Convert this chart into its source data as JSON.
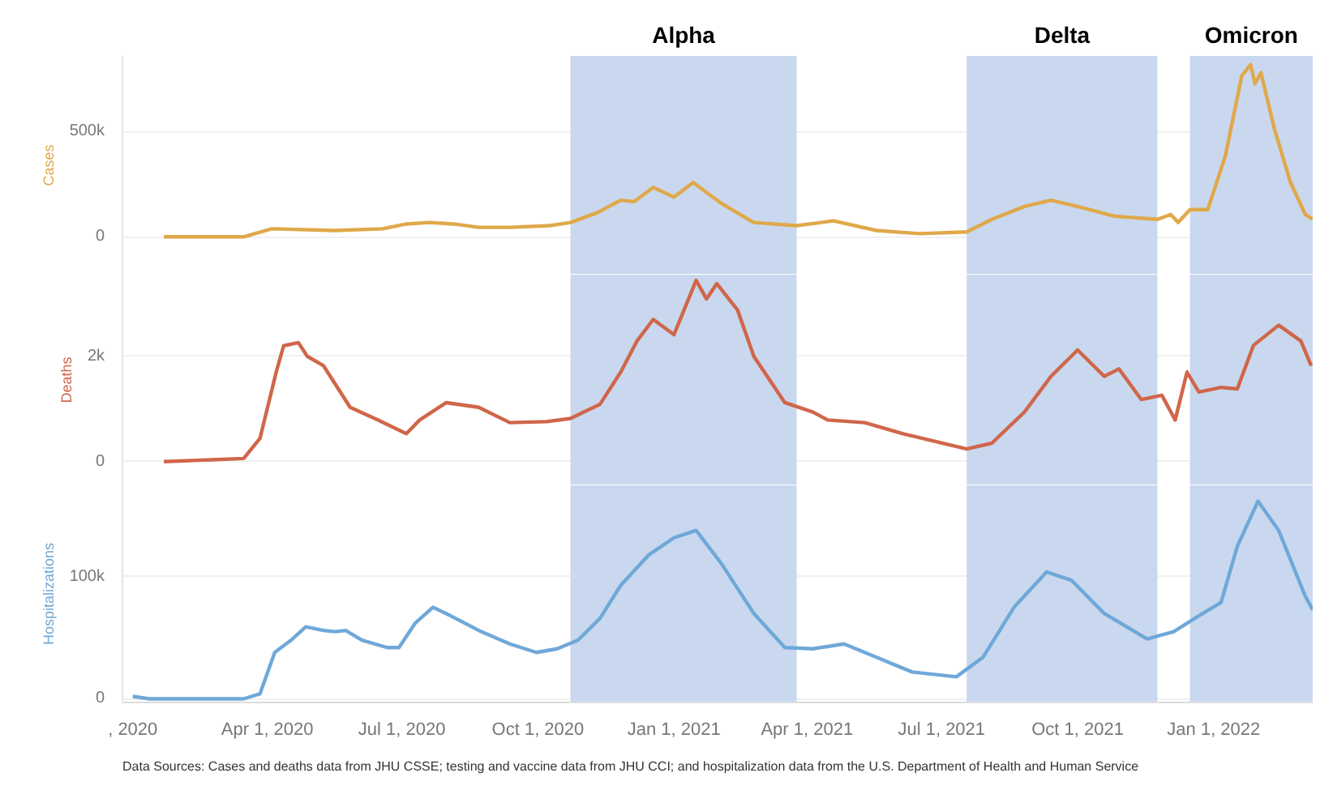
{
  "chart_data": [
    {
      "type": "line",
      "ylabel": "Cases",
      "xlim": [
        "2019-12-25",
        "2022-03-09"
      ],
      "ylim": [
        -180000,
        860000
      ],
      "yticks": [
        0,
        {
          "value": 500000,
          "label": "500k"
        }
      ],
      "grid": "y",
      "tick_labels": "y",
      "bands": [
        {
          "axis": "x",
          "from": "2020-10-23",
          "to": "2021-03-25",
          "label": "Alpha",
          "color": "#c9d8ee"
        },
        {
          "axis": "x",
          "from": "2021-07-18",
          "to": "2021-11-24",
          "label": "Delta",
          "color": "#c9d8ee"
        },
        {
          "axis": "x",
          "from": "2021-12-16",
          "to": "2022-03-09",
          "label": "Omicron",
          "color": "#c9d8ee"
        }
      ],
      "series": [
        {
          "color": "#e0a84a",
          "x": [
            "2020-01-22",
            "2020-03-16",
            "2020-04-04",
            "2020-05-17",
            "2020-06-18",
            "2020-07-04",
            "2020-07-20",
            "2020-08-05",
            "2020-08-22",
            "2020-09-12",
            "2020-10-09",
            "2020-10-23",
            "2020-11-10",
            "2020-11-26",
            "2020-12-05",
            "2020-12-18",
            "2021-01-01",
            "2021-01-14",
            "2021-02-02",
            "2021-02-24",
            "2021-03-25",
            "2021-04-19",
            "2021-05-18",
            "2021-06-16",
            "2021-07-18",
            "2021-08-04",
            "2021-08-26",
            "2021-09-13",
            "2021-10-01",
            "2021-10-26",
            "2021-11-24",
            "2021-12-03",
            "2021-12-08",
            "2021-12-16",
            "2021-12-28",
            "2022-01-09",
            "2022-01-20",
            "2022-01-26",
            "2022-01-29",
            "2022-02-02",
            "2022-02-11",
            "2022-02-22",
            "2022-03-04",
            "2022-03-09"
          ],
          "values": [
            0,
            0,
            38000,
            30000,
            38000,
            61000,
            68000,
            61000,
            45000,
            45000,
            53000,
            68000,
            114000,
            174000,
            167000,
            235000,
            189000,
            258000,
            159000,
            68000,
            53000,
            76000,
            30000,
            15000,
            23000,
            83000,
            144000,
            174000,
            144000,
            98000,
            83000,
            106000,
            68000,
            129000,
            129000,
            386000,
            765000,
            818000,
            727000,
            780000,
            515000,
            258000,
            106000,
            83000
          ]
        }
      ]
    },
    {
      "type": "line",
      "ylabel": "Deaths",
      "xlim": [
        "2019-12-25",
        "2022-03-09"
      ],
      "ylim": [
        -450,
        3550
      ],
      "yticks": [
        0,
        {
          "value": 2000,
          "label": "2k"
        }
      ],
      "grid": "y",
      "tick_labels": "y",
      "bands": [
        {
          "axis": "x",
          "from": "2020-10-23",
          "to": "2021-03-25",
          "color": "#c9d8ee"
        },
        {
          "axis": "x",
          "from": "2021-07-18",
          "to": "2021-11-24",
          "color": "#c9d8ee"
        },
        {
          "axis": "x",
          "from": "2021-12-16",
          "to": "2022-03-09",
          "color": "#c9d8ee"
        }
      ],
      "series": [
        {
          "color": "#d0664a",
          "x": [
            "2020-01-22",
            "2020-03-16",
            "2020-03-27",
            "2020-04-07",
            "2020-04-12",
            "2020-04-22",
            "2020-04-28",
            "2020-05-09",
            "2020-05-17",
            "2020-05-27",
            "2020-06-15",
            "2020-07-04",
            "2020-07-13",
            "2020-07-31",
            "2020-08-22",
            "2020-09-12",
            "2020-10-07",
            "2020-10-23",
            "2020-11-12",
            "2020-11-26",
            "2020-12-07",
            "2020-12-18",
            "2021-01-01",
            "2021-01-16",
            "2021-01-23",
            "2021-01-30",
            "2021-02-13",
            "2021-02-24",
            "2021-03-17",
            "2021-04-05",
            "2021-04-15",
            "2021-05-10",
            "2021-06-05",
            "2021-07-18",
            "2021-08-04",
            "2021-08-26",
            "2021-09-13",
            "2021-10-01",
            "2021-10-19",
            "2021-10-29",
            "2021-11-13",
            "2021-11-27",
            "2021-12-06",
            "2021-12-14",
            "2021-12-22",
            "2022-01-06",
            "2022-01-17",
            "2022-01-28",
            "2022-02-14",
            "2022-03-01",
            "2022-03-08"
          ],
          "values": [
            0,
            60,
            440,
            1700,
            2200,
            2260,
            2000,
            1820,
            1470,
            1030,
            790,
            530,
            790,
            1120,
            1030,
            740,
            760,
            820,
            1090,
            1700,
            2290,
            2700,
            2410,
            3440,
            3090,
            3380,
            2880,
            2000,
            1120,
            940,
            790,
            740,
            530,
            240,
            350,
            940,
            1620,
            2120,
            1620,
            1760,
            1180,
            1260,
            790,
            1700,
            1320,
            1410,
            1380,
            2210,
            2590,
            2290,
            1820
          ]
        }
      ]
    },
    {
      "type": "line",
      "ylabel": "Hospitalizations",
      "xlim": [
        "2019-12-25",
        "2022-03-09"
      ],
      "ylim": [
        -3000,
        175000
      ],
      "yticks": [
        0,
        {
          "value": 100000,
          "label": "100k"
        }
      ],
      "xticks": [
        {
          "value": "2020-01-01",
          "label": ", 2020"
        },
        {
          "value": "2020-04-01",
          "label": "Apr 1, 2020"
        },
        {
          "value": "2020-07-01",
          "label": "Jul 1, 2020"
        },
        {
          "value": "2020-10-01",
          "label": "Oct 1, 2020"
        },
        {
          "value": "2021-01-01",
          "label": "Jan 1, 2021"
        },
        {
          "value": "2021-04-01",
          "label": "Apr 1, 2021"
        },
        {
          "value": "2021-07-01",
          "label": "Jul 1, 2021"
        },
        {
          "value": "2021-10-01",
          "label": "Oct 1, 2021"
        },
        {
          "value": "2022-01-01",
          "label": "Jan 1, 2022"
        }
      ],
      "grid": "y",
      "bands": [
        {
          "axis": "x",
          "from": "2020-10-23",
          "to": "2021-03-25",
          "color": "#c9d8ee"
        },
        {
          "axis": "x",
          "from": "2021-07-18",
          "to": "2021-11-24",
          "color": "#c9d8ee"
        },
        {
          "axis": "x",
          "from": "2021-12-16",
          "to": "2022-03-09",
          "color": "#c9d8ee"
        }
      ],
      "annotations": [
        "Data Sources: Cases and deaths data from JHU CSSE; testing and vaccine data from JHU CCI; and hospitalization data from the U.S. Department of Health and Human Service"
      ],
      "series": [
        {
          "color": "#6fa8d8",
          "x": [
            "2020-01-01",
            "2020-01-12",
            "2020-03-16",
            "2020-03-27",
            "2020-04-06",
            "2020-04-18",
            "2020-04-27",
            "2020-05-09",
            "2020-05-17",
            "2020-05-24",
            "2020-06-04",
            "2020-06-21",
            "2020-06-29",
            "2020-07-10",
            "2020-07-22",
            "2020-08-03",
            "2020-08-22",
            "2020-09-12",
            "2020-09-30",
            "2020-10-14",
            "2020-10-28",
            "2020-11-12",
            "2020-11-26",
            "2020-12-15",
            "2021-01-01",
            "2021-01-16",
            "2021-02-02",
            "2021-02-24",
            "2021-03-17",
            "2021-04-05",
            "2021-04-26",
            "2021-05-18",
            "2021-06-11",
            "2021-07-11",
            "2021-07-29",
            "2021-08-19",
            "2021-09-10",
            "2021-09-27",
            "2021-10-19",
            "2021-11-17",
            "2021-12-05",
            "2021-12-22",
            "2022-01-06",
            "2022-01-17",
            "2022-01-31",
            "2022-02-14",
            "2022-03-04",
            "2022-03-09"
          ],
          "values": [
            2000,
            0,
            0,
            4000,
            38000,
            49000,
            59000,
            56000,
            55000,
            56000,
            48000,
            42000,
            42000,
            62000,
            75000,
            68000,
            56000,
            45000,
            38000,
            41000,
            48000,
            66000,
            93000,
            118000,
            132000,
            138000,
            111000,
            70000,
            42000,
            41000,
            45000,
            34000,
            22000,
            18000,
            34000,
            75000,
            104000,
            97000,
            70000,
            49000,
            55000,
            68000,
            79000,
            125000,
            162000,
            138000,
            84000,
            73000
          ]
        }
      ]
    }
  ]
}
